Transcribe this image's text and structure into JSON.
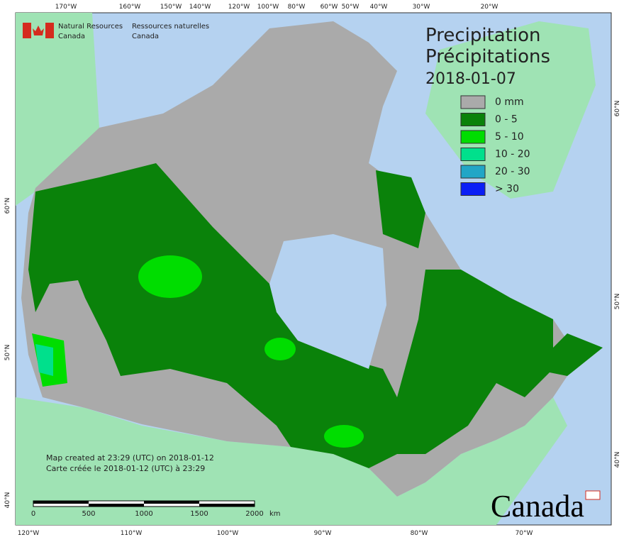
{
  "header": {
    "agency_en": [
      "Natural Resources",
      "Canada"
    ],
    "agency_fr": [
      "Ressources naturelles",
      "Canada"
    ]
  },
  "title": {
    "en": "Precipitation",
    "fr": "Précipitations",
    "date": "2018-01-07"
  },
  "legend": [
    {
      "label": "0 mm",
      "color": "#aaaaaa"
    },
    {
      "label": "0 - 5",
      "color": "#0a820a"
    },
    {
      "label": "5 - 10",
      "color": "#00dd00"
    },
    {
      "label": "10 - 20",
      "color": "#00e08c"
    },
    {
      "label": "20 - 30",
      "color": "#22a6c6"
    },
    {
      "label": "> 30",
      "color": "#0a1ef5"
    }
  ],
  "graticule": {
    "top": [
      "170°W",
      "160°W",
      "150°W",
      "140°W",
      "120°W",
      "100°W",
      "80°W",
      "60°W",
      "50°W",
      "40°W",
      "30°W",
      "20°W"
    ],
    "bottom": [
      "120°W",
      "110°W",
      "100°W",
      "90°W",
      "80°W",
      "70°W"
    ],
    "left": [
      "60°N",
      "50°N",
      "40°N"
    ],
    "right": [
      "60°N",
      "50°N",
      "40°N"
    ]
  },
  "footer": {
    "en": "Map created at 23:29 (UTC) on 2018-01-12",
    "fr": "Carte créée le 2018-01-12 (UTC) à 23:29"
  },
  "scale_bar": {
    "labels": [
      "0",
      "500",
      "1000",
      "1500",
      "2000"
    ],
    "unit": "km"
  },
  "wordmark": "Canada"
}
